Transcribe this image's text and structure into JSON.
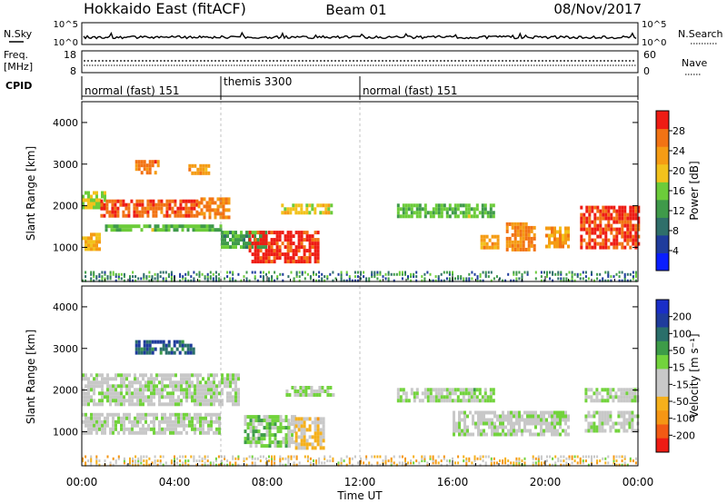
{
  "header": {
    "radar": "Hokkaido East (fitACF)",
    "beam": "Beam 01",
    "date": "08/Nov/2017"
  },
  "summary": {
    "nsky_label": "N.Sky",
    "nsearch_label": "N.Search",
    "freq_label_1": "Freq.",
    "freq_label_2": "[MHz]",
    "nave_label": "Nave",
    "cpid_label": "CPID",
    "noise_ticks": [
      "10^5",
      "10^0"
    ],
    "freq_ticks": [
      "18",
      "8"
    ],
    "nave_ticks": [
      "60",
      "0"
    ]
  },
  "cpid_segments": [
    {
      "label": "normal (fast) 151",
      "start_hour": 0,
      "end_hour": 6
    },
    {
      "label": "themis 3300",
      "start_hour": 6,
      "end_hour": 12
    },
    {
      "label": "normal (fast) 151",
      "start_hour": 12,
      "end_hour": 24
    }
  ],
  "colors": {
    "power_scale": [
      "#0a1eff",
      "#1f3c9c",
      "#2f6f6a",
      "#3f9a4a",
      "#6ccc3a",
      "#f2c21c",
      "#f59c14",
      "#f27314",
      "#ee1c14"
    ],
    "velocity_scale": [
      "#ee1c14",
      "#f25a14",
      "#f59614",
      "#f5b01c",
      "#c8c8c8",
      "#c8c8c8",
      "#72d33c",
      "#3d9c48",
      "#2a6f6a",
      "#1f3c9c",
      "#1a2ec8"
    ]
  },
  "chart_data": [
    {
      "type": "heatmap",
      "panel": "power",
      "ylabel": "Slant Range [km]",
      "colorbar_label": "Power [dB]",
      "colorbar_ticks": [
        "4",
        "8",
        "12",
        "16",
        "20",
        "24",
        "28"
      ],
      "colorbar_range": [
        0,
        30
      ],
      "ylim": [
        180,
        4500
      ],
      "yticks": [
        "1000",
        "2000",
        "3000",
        "4000"
      ],
      "xlim": [
        0,
        24
      ],
      "xticks": [
        "00:00",
        "04:00",
        "08:00",
        "12:00",
        "16:00",
        "20:00",
        "00:00"
      ],
      "xlabel": "Time UT",
      "echo_regions": [
        {
          "t0": 0.0,
          "t1": 0.8,
          "r0": 1000,
          "r1": 1350,
          "value": 20
        },
        {
          "t0": 0.0,
          "t1": 1.0,
          "r0": 1950,
          "r1": 2350,
          "value": 16
        },
        {
          "t0": 0.8,
          "t1": 5.0,
          "r0": 1750,
          "r1": 2150,
          "value": 26
        },
        {
          "t0": 1.0,
          "t1": 6.0,
          "r0": 1400,
          "r1": 1550,
          "value": 14
        },
        {
          "t0": 2.3,
          "t1": 3.3,
          "r0": 2800,
          "r1": 3100,
          "value": 24
        },
        {
          "t0": 4.6,
          "t1": 5.5,
          "r0": 2750,
          "r1": 3000,
          "value": 22
        },
        {
          "t0": 5.0,
          "t1": 6.4,
          "r0": 1750,
          "r1": 2200,
          "value": 24
        },
        {
          "t0": 6.0,
          "t1": 8.0,
          "r0": 1050,
          "r1": 1400,
          "value": 12
        },
        {
          "t0": 7.2,
          "t1": 10.2,
          "r0": 650,
          "r1": 1400,
          "value": 28
        },
        {
          "t0": 8.6,
          "t1": 10.8,
          "r0": 1850,
          "r1": 2050,
          "value": 18
        },
        {
          "t0": 13.6,
          "t1": 17.8,
          "r0": 1750,
          "r1": 2050,
          "value": 14
        },
        {
          "t0": 17.2,
          "t1": 18.0,
          "r0": 1000,
          "r1": 1300,
          "value": 22
        },
        {
          "t0": 18.3,
          "t1": 19.5,
          "r0": 950,
          "r1": 1600,
          "value": 24
        },
        {
          "t0": 20.0,
          "t1": 21.0,
          "r0": 1050,
          "r1": 1500,
          "value": 22
        },
        {
          "t0": 21.5,
          "t1": 24.0,
          "r0": 1000,
          "r1": 2000,
          "value": 27
        }
      ],
      "near_range_clutter": {
        "r0": 180,
        "r1": 420,
        "value": 10
      }
    },
    {
      "type": "heatmap",
      "panel": "velocity",
      "ylabel": "Slant Range [km]",
      "colorbar_label": "Velocity [m s⁻¹]",
      "colorbar_ticks": [
        "200",
        "100",
        "50",
        "15",
        "-15",
        "-50",
        "-100",
        "-200"
      ],
      "colorbar_range": [
        -250,
        250
      ],
      "ylim": [
        180,
        4500
      ],
      "yticks": [
        "1000",
        "2000",
        "3000",
        "4000"
      ],
      "xlim": [
        0,
        24
      ],
      "xticks": [
        "00:00",
        "04:00",
        "08:00",
        "12:00",
        "16:00",
        "20:00",
        "00:00"
      ],
      "xlabel": "Time UT",
      "echo_regions": [
        {
          "t0": 0.0,
          "t1": 6.8,
          "r0": 1700,
          "r1": 2400,
          "value": 0
        },
        {
          "t0": 0.0,
          "t1": 6.0,
          "r0": 950,
          "r1": 1450,
          "value": 0
        },
        {
          "t0": 2.3,
          "t1": 4.8,
          "r0": 2900,
          "r1": 3200,
          "value": 150
        },
        {
          "t0": 7.0,
          "t1": 8.9,
          "r0": 650,
          "r1": 1400,
          "value": 40
        },
        {
          "t0": 8.9,
          "t1": 9.2,
          "r0": 650,
          "r1": 1400,
          "value": 0
        },
        {
          "t0": 9.2,
          "t1": 10.4,
          "r0": 650,
          "r1": 1350,
          "value": -70
        },
        {
          "t0": 8.8,
          "t1": 10.8,
          "r0": 1850,
          "r1": 2100,
          "value": 30
        },
        {
          "t0": 13.6,
          "t1": 17.8,
          "r0": 1750,
          "r1": 2050,
          "value": 25
        },
        {
          "t0": 16.0,
          "t1": 21.0,
          "r0": 950,
          "r1": 1500,
          "value": 0
        },
        {
          "t0": 21.7,
          "t1": 24.0,
          "r0": 1750,
          "r1": 2050,
          "value": 0
        },
        {
          "t0": 21.7,
          "t1": 24.0,
          "r0": 1050,
          "r1": 1500,
          "value": 0
        }
      ],
      "near_range_clutter": {
        "r0": 180,
        "r1": 400,
        "value": -60
      }
    }
  ]
}
